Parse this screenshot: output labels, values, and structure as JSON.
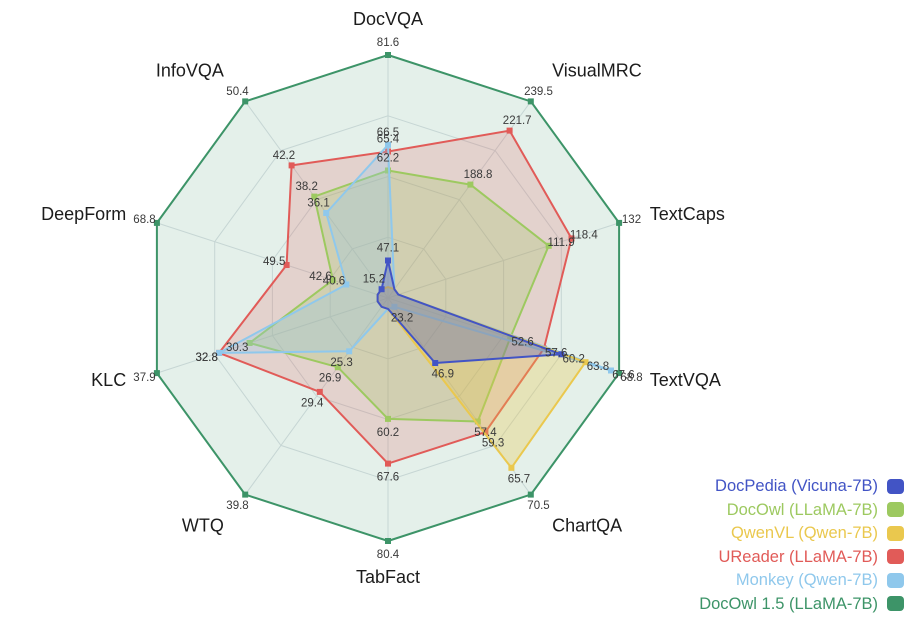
{
  "chart_data": {
    "type": "radar",
    "title": "",
    "axes": [
      {
        "label": "DocVQA",
        "max": 81.6
      },
      {
        "label": "VisualMRC",
        "max": 239.5
      },
      {
        "label": "TextCaps",
        "max": 132
      },
      {
        "label": "TextVQA",
        "max": 68.8
      },
      {
        "label": "ChartQA",
        "max": 70.5
      },
      {
        "label": "TabFact",
        "max": 80.4
      },
      {
        "label": "WTQ",
        "max": 39.8
      },
      {
        "label": "KLC",
        "max": 37.9
      },
      {
        "label": "DeepForm",
        "max": 68.8
      },
      {
        "label": "InfoVQA",
        "max": 50.4
      }
    ],
    "series": [
      {
        "name": "DocPedia (Vicuna-7B)",
        "color": "#4254c5",
        "fill_opacity": 0.3,
        "values": [
          47.1,
          null,
          null,
          60.2,
          46.9,
          null,
          null,
          null,
          null,
          15.2
        ]
      },
      {
        "name": "DocOwl (LLaMA-7B)",
        "color": "#9dc960",
        "fill_opacity": 0.25,
        "values": [
          62.2,
          188.8,
          111.9,
          52.6,
          57.4,
          60.2,
          26.9,
          30.3,
          42.6,
          38.2
        ]
      },
      {
        "name": "QwenVL (Qwen-7B)",
        "color": "#eac84e",
        "fill_opacity": 0.32,
        "values": [
          null,
          null,
          null,
          63.8,
          65.7,
          null,
          null,
          null,
          null,
          null
        ]
      },
      {
        "name": "UReader (LLaMA-7B)",
        "color": "#e15b58",
        "fill_opacity": 0.2,
        "values": [
          65.4,
          221.7,
          118.4,
          57.6,
          59.3,
          67.6,
          29.4,
          32.8,
          49.5,
          42.2
        ]
      },
      {
        "name": "Monkey (Qwen-7B)",
        "color": "#8fc8ec",
        "fill_opacity": 0.28,
        "values": [
          66.5,
          null,
          null,
          67.6,
          23.2,
          null,
          25.3,
          32.8,
          40.6,
          36.1
        ]
      },
      {
        "name": "DocOwl 1.5 (LLaMA-7B)",
        "color": "#3d9468",
        "fill_opacity": 0.14,
        "values": [
          81.6,
          239.5,
          132,
          68.8,
          70.5,
          80.4,
          39.8,
          37.9,
          68.8,
          50.4
        ]
      }
    ],
    "legend_position": "bottom-right",
    "grid": {
      "rings": 4,
      "shape": "polygon",
      "line_color": "#dde1e6"
    },
    "scale_hint": "each axis is scaled independently; center ≈ 0.5 × axis max, outer ring = axis max"
  }
}
